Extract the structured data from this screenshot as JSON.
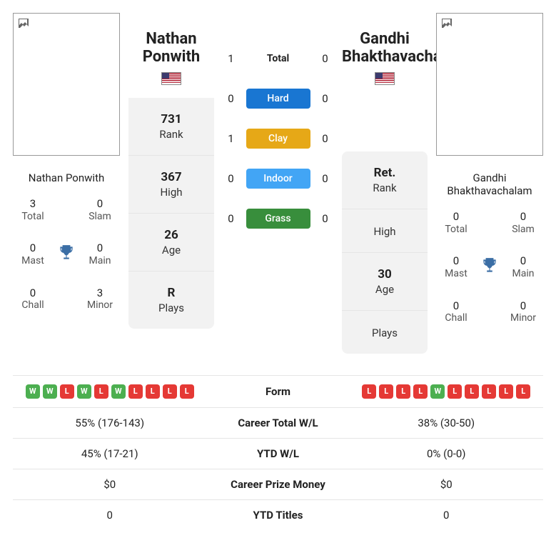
{
  "player1": {
    "name_first": "Nathan",
    "name_last": "Ponwith",
    "full_name": "Nathan Ponwith",
    "stats": {
      "total": "3",
      "slam": "0",
      "mast": "0",
      "main": "0",
      "chall": "0",
      "minor": "3"
    },
    "rank": "731",
    "high": "367",
    "age": "26",
    "plays": "R",
    "form": [
      "W",
      "W",
      "L",
      "W",
      "L",
      "W",
      "L",
      "L",
      "L",
      "L"
    ]
  },
  "player2": {
    "name_first": "Gandhi",
    "name_last": "Bhakthavachalam",
    "full_name": "Gandhi Bhakthavachalam",
    "stats": {
      "total": "0",
      "slam": "0",
      "mast": "0",
      "main": "0",
      "chall": "0",
      "minor": "0"
    },
    "rank": "Ret.",
    "high": "",
    "age": "30",
    "plays": "",
    "form": [
      "L",
      "L",
      "L",
      "L",
      "W",
      "L",
      "L",
      "L",
      "L",
      "L"
    ]
  },
  "h2h": {
    "total": {
      "p1": "1",
      "p2": "0",
      "label": "Total"
    },
    "hard": {
      "p1": "0",
      "p2": "0",
      "label": "Hard"
    },
    "clay": {
      "p1": "1",
      "p2": "0",
      "label": "Clay"
    },
    "indoor": {
      "p1": "0",
      "p2": "0",
      "label": "Indoor"
    },
    "grass": {
      "p1": "0",
      "p2": "0",
      "label": "Grass"
    }
  },
  "labels": {
    "rank": "Rank",
    "high": "High",
    "age": "Age",
    "plays": "Plays",
    "total": "Total",
    "slam": "Slam",
    "mast": "Mast",
    "main": "Main",
    "chall": "Chall",
    "minor": "Minor",
    "form": "Form",
    "career_wl": "Career Total W/L",
    "ytd_wl": "YTD W/L",
    "prize": "Career Prize Money",
    "ytd_titles": "YTD Titles"
  },
  "table": {
    "career_wl": {
      "p1": "55% (176-143)",
      "p2": "38% (30-50)"
    },
    "ytd_wl": {
      "p1": "45% (17-21)",
      "p2": "0% (0-0)"
    },
    "prize": {
      "p1": "$0",
      "p2": "$0"
    },
    "ytd_titles": {
      "p1": "0",
      "p2": "0"
    }
  },
  "colors": {
    "hard": "#1976d2",
    "clay": "#e6a817",
    "indoor": "#42a5f5",
    "grass": "#388e3c",
    "win": "#4caf50",
    "loss": "#e53935",
    "trophy": "#3b6ea5",
    "card_bg": "#f2f2f2"
  }
}
